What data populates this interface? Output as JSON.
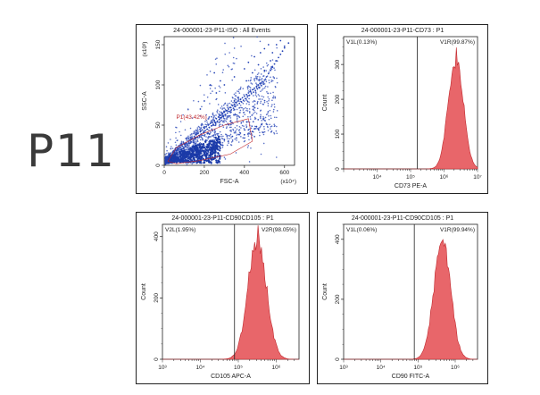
{
  "sample_label": "P11",
  "colors": {
    "histogram": "#e8666a",
    "histogram_edge": "#c0282d",
    "scatter": "#2342b5",
    "gate": "#c0282d"
  },
  "chart_data": [
    {
      "type": "scatter",
      "title": "24-000001-23-P11-ISO : All Events",
      "xlabel": "FSC-A",
      "ylabel": "SSC-A",
      "x_scale_label": "(x10⁴)",
      "y_scale_label": "(x10³)",
      "xlim": [
        0,
        650
      ],
      "ylim": [
        0,
        160
      ],
      "xticks": [
        "0",
        "200",
        "400",
        "600"
      ],
      "yticks": [
        "0",
        "50",
        "100",
        "150"
      ],
      "gate": {
        "name": "P1",
        "label": "P1(43.42%)"
      },
      "points": [
        [
          10,
          5
        ],
        [
          15,
          8
        ],
        [
          20,
          10
        ],
        [
          25,
          6
        ],
        [
          30,
          12
        ],
        [
          35,
          9
        ],
        [
          40,
          14
        ],
        [
          45,
          11
        ],
        [
          50,
          16
        ],
        [
          55,
          13
        ],
        [
          60,
          18
        ],
        [
          65,
          15
        ],
        [
          70,
          20
        ],
        [
          75,
          17
        ],
        [
          80,
          22
        ],
        [
          85,
          19
        ],
        [
          90,
          24
        ],
        [
          95,
          21
        ],
        [
          100,
          26
        ],
        [
          105,
          23
        ],
        [
          110,
          28
        ],
        [
          115,
          25
        ],
        [
          120,
          30
        ],
        [
          125,
          27
        ],
        [
          130,
          32
        ],
        [
          135,
          29
        ],
        [
          140,
          34
        ],
        [
          145,
          31
        ],
        [
          150,
          36
        ],
        [
          155,
          33
        ],
        [
          160,
          38
        ],
        [
          165,
          35
        ],
        [
          170,
          40
        ],
        [
          175,
          37
        ],
        [
          180,
          42
        ],
        [
          185,
          39
        ],
        [
          190,
          44
        ],
        [
          195,
          41
        ],
        [
          200,
          46
        ],
        [
          205,
          43
        ],
        [
          210,
          48
        ],
        [
          215,
          45
        ],
        [
          220,
          50
        ],
        [
          225,
          47
        ],
        [
          230,
          52
        ],
        [
          235,
          49
        ],
        [
          240,
          54
        ],
        [
          245,
          51
        ],
        [
          250,
          56
        ],
        [
          255,
          53
        ],
        [
          260,
          58
        ],
        [
          265,
          55
        ],
        [
          270,
          60
        ],
        [
          275,
          57
        ],
        [
          280,
          62
        ],
        [
          285,
          59
        ],
        [
          290,
          64
        ],
        [
          295,
          61
        ],
        [
          300,
          66
        ],
        [
          305,
          63
        ],
        [
          310,
          68
        ],
        [
          315,
          65
        ],
        [
          320,
          70
        ],
        [
          325,
          67
        ],
        [
          330,
          72
        ],
        [
          335,
          69
        ],
        [
          340,
          74
        ],
        [
          345,
          71
        ],
        [
          350,
          76
        ],
        [
          355,
          73
        ],
        [
          360,
          78
        ],
        [
          365,
          75
        ],
        [
          370,
          80
        ],
        [
          375,
          77
        ],
        [
          380,
          82
        ],
        [
          385,
          79
        ],
        [
          390,
          84
        ],
        [
          395,
          81
        ],
        [
          400,
          86
        ],
        [
          405,
          83
        ],
        [
          410,
          88
        ],
        [
          415,
          85
        ],
        [
          420,
          90
        ],
        [
          425,
          87
        ],
        [
          430,
          92
        ],
        [
          435,
          89
        ],
        [
          440,
          94
        ],
        [
          445,
          91
        ],
        [
          450,
          96
        ],
        [
          455,
          93
        ],
        [
          460,
          98
        ],
        [
          465,
          95
        ],
        [
          470,
          100
        ],
        [
          475,
          97
        ],
        [
          480,
          102
        ],
        [
          485,
          99
        ],
        [
          490,
          104
        ],
        [
          495,
          101
        ],
        [
          500,
          106
        ],
        [
          510,
          110
        ],
        [
          520,
          114
        ],
        [
          530,
          118
        ],
        [
          540,
          122
        ],
        [
          550,
          126
        ],
        [
          560,
          130
        ],
        [
          570,
          134
        ],
        [
          580,
          138
        ],
        [
          590,
          142
        ],
        [
          600,
          146
        ],
        [
          60,
          8
        ],
        [
          80,
          12
        ],
        [
          100,
          10
        ],
        [
          120,
          14
        ],
        [
          140,
          18
        ],
        [
          160,
          15
        ],
        [
          180,
          20
        ],
        [
          200,
          18
        ],
        [
          220,
          24
        ],
        [
          240,
          22
        ],
        [
          260,
          28
        ],
        [
          280,
          26
        ],
        [
          300,
          32
        ],
        [
          320,
          30
        ],
        [
          340,
          36
        ],
        [
          360,
          34
        ],
        [
          380,
          40
        ],
        [
          400,
          38
        ],
        [
          420,
          44
        ],
        [
          440,
          42
        ],
        [
          460,
          48
        ],
        [
          300,
          100
        ],
        [
          350,
          110
        ],
        [
          400,
          120
        ],
        [
          420,
          128
        ],
        [
          450,
          135
        ],
        [
          480,
          140
        ],
        [
          500,
          145
        ],
        [
          520,
          150
        ],
        [
          540,
          140
        ],
        [
          560,
          150
        ],
        [
          580,
          155
        ],
        [
          600,
          148
        ],
        [
          620,
          152
        ],
        [
          350,
          80
        ],
        [
          380,
          95
        ],
        [
          410,
          105
        ],
        [
          440,
          115
        ],
        [
          470,
          125
        ],
        [
          500,
          118
        ],
        [
          530,
          130
        ],
        [
          260,
          90
        ],
        [
          280,
          105
        ],
        [
          250,
          115
        ],
        [
          230,
          100
        ],
        [
          200,
          80
        ],
        [
          180,
          70
        ]
      ]
    },
    {
      "type": "histogram",
      "title": "24-000001-23-P11-CD73 : P1",
      "xlabel": "CD73 PE-A",
      "ylabel": "Count",
      "x_scale": "log",
      "xlim_exp": [
        3,
        7
      ],
      "ylim": [
        0,
        380
      ],
      "xticks": [
        "10⁴",
        "10⁵",
        "10⁶",
        "10⁷"
      ],
      "yticks": [
        "0",
        "100",
        "200",
        "300"
      ],
      "gates": [
        {
          "label": "V1L(0.13%)"
        },
        {
          "label": "V1R(99.87%)"
        }
      ],
      "gate_threshold_exp": 5.2,
      "peak_exp": 6.35,
      "peak_count": 320,
      "spread": 0.22
    },
    {
      "type": "histogram",
      "title": "24-000001-23-P11-CD90CD105 : P1",
      "xlabel": "CD105 APC-A",
      "ylabel": "Count",
      "x_scale": "log",
      "xlim_exp": [
        3,
        6.6
      ],
      "ylim": [
        0,
        440
      ],
      "xticks": [
        "10³",
        "10⁴",
        "10⁵",
        "10⁶"
      ],
      "yticks": [
        "0",
        "200",
        "400"
      ],
      "gates": [
        {
          "label": "V2L(1.95%)"
        },
        {
          "label": "V2R(98.05%)"
        }
      ],
      "gate_threshold_exp": 4.9,
      "peak_exp": 5.5,
      "peak_count": 400,
      "spread": 0.24
    },
    {
      "type": "histogram",
      "title": "24-000001-23-P11-CD90CD105 : P1",
      "xlabel": "CD90 FITC-A",
      "ylabel": "Count",
      "x_scale": "log",
      "xlim_exp": [
        3,
        6.6
      ],
      "ylim": [
        0,
        450
      ],
      "xticks": [
        "10³",
        "10⁴",
        "10⁵",
        "10⁶"
      ],
      "yticks": [
        "0",
        "200",
        "400"
      ],
      "gates": [
        {
          "label": "V1L(0.06%)"
        },
        {
          "label": "V1R(99.94%)"
        }
      ],
      "gate_threshold_exp": 4.9,
      "peak_exp": 5.65,
      "peak_count": 410,
      "spread": 0.22
    }
  ]
}
